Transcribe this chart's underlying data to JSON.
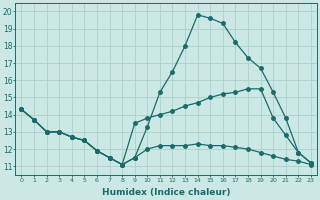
{
  "xlabel": "Humidex (Indice chaleur)",
  "ylabel": "",
  "background_color": "#cce8e4",
  "grid_color": "#aacfcc",
  "line_color": "#1a6b6b",
  "xlim": [
    -0.5,
    23.5
  ],
  "ylim": [
    10.5,
    20.5
  ],
  "xticks": [
    0,
    1,
    2,
    3,
    4,
    5,
    6,
    7,
    8,
    9,
    10,
    11,
    12,
    13,
    14,
    15,
    16,
    17,
    18,
    19,
    20,
    21,
    22,
    23
  ],
  "yticks": [
    11,
    12,
    13,
    14,
    15,
    16,
    17,
    18,
    19,
    20
  ],
  "line1_x": [
    0,
    1,
    2,
    3,
    4,
    5,
    6,
    7,
    8,
    9,
    10,
    11,
    12,
    13,
    14,
    15,
    16,
    17,
    18,
    19,
    20,
    21,
    22,
    23
  ],
  "line1_y": [
    14.3,
    13.7,
    13.0,
    13.0,
    12.7,
    12.5,
    11.9,
    11.5,
    11.1,
    11.5,
    12.0,
    12.2,
    12.2,
    12.2,
    12.3,
    12.2,
    12.2,
    12.1,
    12.0,
    11.8,
    11.6,
    11.4,
    11.3,
    11.1
  ],
  "line2_x": [
    0,
    1,
    2,
    3,
    4,
    5,
    6,
    7,
    8,
    9,
    10,
    11,
    12,
    13,
    14,
    15,
    16,
    17,
    18,
    19,
    20,
    21,
    22,
    23
  ],
  "line2_y": [
    14.3,
    13.7,
    13.0,
    13.0,
    12.7,
    12.5,
    11.9,
    11.5,
    11.1,
    11.5,
    13.3,
    15.3,
    16.5,
    18.0,
    19.8,
    19.6,
    19.3,
    18.2,
    17.3,
    16.7,
    15.3,
    13.8,
    11.8,
    11.2
  ],
  "line3_x": [
    0,
    1,
    2,
    3,
    4,
    5,
    6,
    7,
    8,
    9,
    10,
    11,
    12,
    13,
    14,
    15,
    16,
    17,
    18,
    19,
    20,
    21,
    22,
    23
  ],
  "line3_y": [
    14.3,
    13.7,
    13.0,
    13.0,
    12.7,
    12.5,
    11.9,
    11.5,
    11.1,
    13.5,
    13.8,
    14.0,
    14.2,
    14.5,
    14.7,
    15.0,
    15.2,
    15.3,
    15.5,
    15.5,
    13.8,
    12.8,
    11.8,
    11.2
  ],
  "marker_size": 2.5,
  "line_width": 0.9
}
